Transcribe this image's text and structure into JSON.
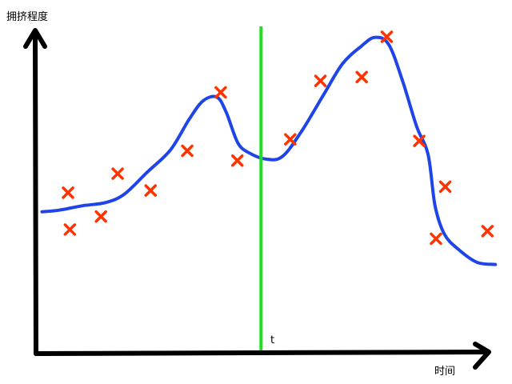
{
  "chart_data": {
    "type": "scatter",
    "title": "",
    "xlabel": "时间",
    "ylabel": "拥挤程度",
    "xlim": [
      0,
      100
    ],
    "ylim": [
      0,
      100
    ],
    "grid": false,
    "legend": "none",
    "axis_ticks": "none",
    "marker_label": "t",
    "marker_x": 48.5,
    "colors": {
      "axis": "#000000",
      "curve": "#1f45e8",
      "points": "#ff3300",
      "marker": "#1ee11e"
    },
    "series": [
      {
        "kind": "points",
        "marker": "x",
        "values": [
          {
            "x": 6.9,
            "y": 49.4
          },
          {
            "x": 7.3,
            "y": 37.8
          },
          {
            "x": 14.0,
            "y": 41.9
          },
          {
            "x": 17.6,
            "y": 55.4
          },
          {
            "x": 24.7,
            "y": 50.1
          },
          {
            "x": 32.6,
            "y": 62.6
          },
          {
            "x": 39.8,
            "y": 81.0
          },
          {
            "x": 43.4,
            "y": 59.5
          },
          {
            "x": 54.8,
            "y": 66.2
          },
          {
            "x": 61.3,
            "y": 84.6
          },
          {
            "x": 70.2,
            "y": 85.8
          },
          {
            "x": 75.6,
            "y": 98.5
          },
          {
            "x": 82.6,
            "y": 65.7
          },
          {
            "x": 88.2,
            "y": 51.3
          },
          {
            "x": 86.2,
            "y": 34.9
          },
          {
            "x": 97.3,
            "y": 37.3
          }
        ]
      },
      {
        "kind": "curve",
        "values": [
          {
            "x": 1.3,
            "y": 43.4
          },
          {
            "x": 5.0,
            "y": 43.9
          },
          {
            "x": 10.0,
            "y": 45.3
          },
          {
            "x": 15.0,
            "y": 46.3
          },
          {
            "x": 19.0,
            "y": 48.9
          },
          {
            "x": 24.0,
            "y": 55.9
          },
          {
            "x": 29.0,
            "y": 62.9
          },
          {
            "x": 33.0,
            "y": 72.5
          },
          {
            "x": 36.0,
            "y": 78.3
          },
          {
            "x": 39.0,
            "y": 79.5
          },
          {
            "x": 41.0,
            "y": 74.7
          },
          {
            "x": 43.5,
            "y": 65.1
          },
          {
            "x": 46.0,
            "y": 61.9
          },
          {
            "x": 49.5,
            "y": 60.0
          },
          {
            "x": 53.0,
            "y": 60.7
          },
          {
            "x": 57.0,
            "y": 68.2
          },
          {
            "x": 62.0,
            "y": 80.3
          },
          {
            "x": 66.0,
            "y": 89.9
          },
          {
            "x": 70.0,
            "y": 95.4
          },
          {
            "x": 73.0,
            "y": 98.3
          },
          {
            "x": 76.0,
            "y": 96.1
          },
          {
            "x": 79.0,
            "y": 84.6
          },
          {
            "x": 82.0,
            "y": 70.4
          },
          {
            "x": 84.5,
            "y": 61.4
          },
          {
            "x": 86.0,
            "y": 45.3
          },
          {
            "x": 88.0,
            "y": 36.4
          },
          {
            "x": 91.0,
            "y": 31.6
          },
          {
            "x": 95.0,
            "y": 27.5
          },
          {
            "x": 99.0,
            "y": 26.8
          }
        ]
      }
    ]
  }
}
